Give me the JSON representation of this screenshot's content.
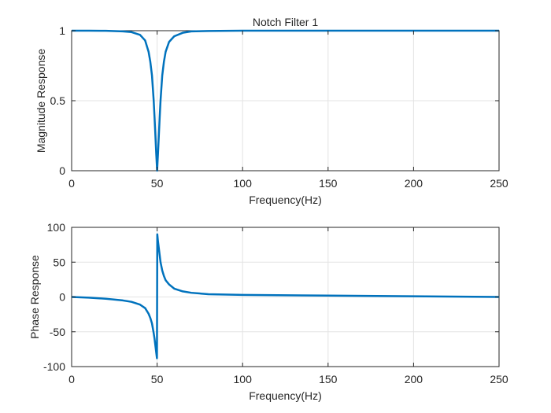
{
  "chart_data": [
    {
      "type": "line",
      "title": "Notch Filter 1",
      "xlabel": "Frequency(Hz)",
      "ylabel": "Magnitude Response",
      "xlim": [
        0,
        250
      ],
      "ylim": [
        0,
        1
      ],
      "xticks": [
        0,
        50,
        100,
        150,
        200,
        250
      ],
      "yticks": [
        0,
        0.5,
        1
      ],
      "xtick_labels": [
        "0",
        "50",
        "100",
        "150",
        "200",
        "250"
      ],
      "ytick_labels": [
        "0",
        "0.5",
        "1"
      ],
      "grid": true,
      "line_color": "#0072BD",
      "series": [
        {
          "x": [
            0,
            10,
            20,
            30,
            35,
            40,
            43,
            45,
            46,
            47,
            48,
            48.5,
            49,
            49.5,
            49.8,
            50,
            50.2,
            50.5,
            51,
            51.5,
            52,
            53,
            54,
            55,
            57,
            60,
            65,
            70,
            80,
            100,
            150,
            200,
            250
          ],
          "y": [
            1,
            1,
            0.999,
            0.995,
            0.99,
            0.97,
            0.93,
            0.85,
            0.78,
            0.68,
            0.5,
            0.38,
            0.25,
            0.12,
            0.05,
            0,
            0.05,
            0.12,
            0.25,
            0.38,
            0.5,
            0.68,
            0.78,
            0.85,
            0.92,
            0.96,
            0.985,
            0.995,
            0.998,
            1,
            1,
            1,
            1
          ]
        }
      ]
    },
    {
      "type": "line",
      "title": "",
      "xlabel": "Frequency(Hz)",
      "ylabel": "Phase Response",
      "xlim": [
        0,
        250
      ],
      "ylim": [
        -100,
        100
      ],
      "xticks": [
        0,
        50,
        100,
        150,
        200,
        250
      ],
      "yticks": [
        -100,
        -50,
        0,
        50,
        100
      ],
      "xtick_labels": [
        "0",
        "50",
        "100",
        "150",
        "200",
        "250"
      ],
      "ytick_labels": [
        "-100",
        "-50",
        "0",
        "50",
        "100"
      ],
      "grid": true,
      "line_color": "#0072BD",
      "series": [
        {
          "x": [
            0,
            10,
            20,
            30,
            35,
            40,
            43,
            45,
            46,
            47,
            48,
            48.5,
            49,
            49.5,
            49.9,
            50,
            50.1,
            50.5,
            51,
            51.5,
            52,
            53,
            54,
            55,
            57,
            60,
            65,
            70,
            80,
            100,
            150,
            200,
            250
          ],
          "y": [
            0,
            -1,
            -2.5,
            -5,
            -7,
            -11,
            -16,
            -24,
            -30,
            -38,
            -52,
            -60,
            -70,
            -80,
            -88,
            0,
            90,
            80,
            70,
            60,
            50,
            38,
            30,
            24,
            18,
            12,
            8,
            6,
            4,
            3,
            2,
            1,
            0
          ]
        }
      ]
    }
  ]
}
